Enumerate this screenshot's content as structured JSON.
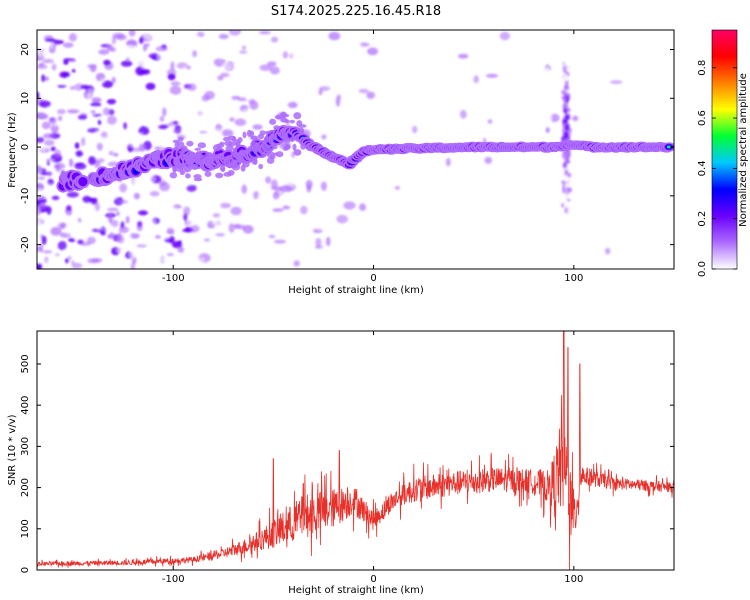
{
  "title": "S174.2025.225.16.45.R18",
  "chart_data": [
    {
      "type": "heatmap",
      "name": "spectrogram",
      "xlabel": "Height of straight line (km)",
      "ylabel": "Frequency (Hz)",
      "xlim": [
        -168,
        150
      ],
      "ylim": [
        -25,
        24
      ],
      "xticks": [
        -100,
        0,
        100
      ],
      "yticks": [
        -20,
        -10,
        0,
        10,
        20
      ],
      "ridge_frequency_hz": [
        {
          "x": -152,
          "y": -7
        },
        {
          "x": -130,
          "y": -5.5
        },
        {
          "x": -100,
          "y": -2
        },
        {
          "x": -85,
          "y": -3
        },
        {
          "x": -70,
          "y": -2
        },
        {
          "x": -55,
          "y": 0
        },
        {
          "x": -42,
          "y": 4
        },
        {
          "x": -30,
          "y": 0
        },
        {
          "x": -20,
          "y": -2
        },
        {
          "x": -12,
          "y": -3.5
        },
        {
          "x": -5,
          "y": -1
        },
        {
          "x": 0,
          "y": -0.5
        },
        {
          "x": 50,
          "y": 0
        },
        {
          "x": 90,
          "y": 0
        },
        {
          "x": 97,
          "y": 0.5
        },
        {
          "x": 110,
          "y": 0
        },
        {
          "x": 150,
          "y": 0
        }
      ],
      "colorbar": {
        "label": "Normalized spectral amplitude",
        "range": [
          0.0,
          0.95
        ],
        "ticks": [
          "0.0",
          "0.2",
          "0.4",
          "0.6",
          "0.8"
        ],
        "colors": [
          "#ffffff",
          "#ad6bff",
          "#6a00ff",
          "#0000ff",
          "#00c8ff",
          "#00ff33",
          "#ffff00",
          "#ff8000",
          "#ff0000",
          "#ff0066"
        ]
      }
    },
    {
      "type": "line",
      "name": "snr",
      "xlabel": "Height of straight line (km)",
      "ylabel": "SNR (10 * v/v)",
      "xlim": [
        -168,
        150
      ],
      "ylim": [
        0,
        580
      ],
      "xticks": [
        -100,
        0,
        100
      ],
      "yticks": [
        0,
        100,
        200,
        300,
        400,
        500
      ],
      "color": "#e8302a",
      "envelope": [
        {
          "x": -168,
          "mean": 15,
          "spread": 8
        },
        {
          "x": -120,
          "mean": 18,
          "spread": 10
        },
        {
          "x": -90,
          "mean": 25,
          "spread": 12
        },
        {
          "x": -75,
          "mean": 40,
          "spread": 20
        },
        {
          "x": -60,
          "mean": 65,
          "spread": 35
        },
        {
          "x": -45,
          "mean": 100,
          "spread": 70
        },
        {
          "x": -35,
          "mean": 130,
          "spread": 90
        },
        {
          "x": -20,
          "mean": 150,
          "spread": 80
        },
        {
          "x": -10,
          "mean": 170,
          "spread": 60
        },
        {
          "x": 0,
          "mean": 120,
          "spread": 40
        },
        {
          "x": 10,
          "mean": 170,
          "spread": 40
        },
        {
          "x": 20,
          "mean": 195,
          "spread": 50
        },
        {
          "x": 40,
          "mean": 210,
          "spread": 50
        },
        {
          "x": 60,
          "mean": 220,
          "spread": 50
        },
        {
          "x": 80,
          "mean": 215,
          "spread": 50
        },
        {
          "x": 88,
          "mean": 200,
          "spread": 70
        },
        {
          "x": 95,
          "mean": 260,
          "spread": 220
        },
        {
          "x": 100,
          "mean": 120,
          "spread": 120
        },
        {
          "x": 104,
          "mean": 230,
          "spread": 40
        },
        {
          "x": 120,
          "mean": 210,
          "spread": 25
        },
        {
          "x": 150,
          "mean": 200,
          "spread": 20
        }
      ],
      "peaks": [
        {
          "x": -50,
          "y": 270
        },
        {
          "x": -35,
          "y": 210
        },
        {
          "x": -17,
          "y": 290
        },
        {
          "x": 95,
          "y": 580
        },
        {
          "x": 97,
          "y": 540
        },
        {
          "x": 103,
          "y": 500
        }
      ]
    }
  ]
}
